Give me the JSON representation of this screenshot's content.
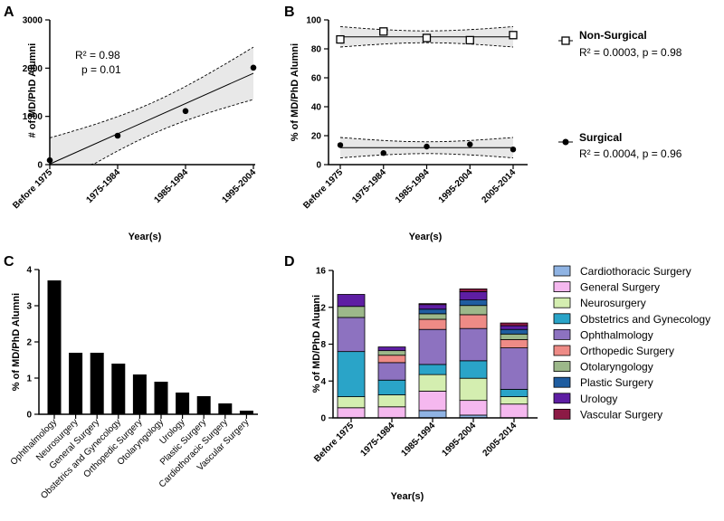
{
  "chart_data": [
    {
      "panel": "A",
      "type": "scatter",
      "ylabel": "# of MD/PhD Alumni",
      "xlabel": "Year(s)",
      "categories": [
        "Before 1975",
        "1975-1984",
        "1985-1994",
        "1995-2004"
      ],
      "values": [
        90,
        600,
        1110,
        2010
      ],
      "ylim": [
        0,
        3000
      ],
      "yticks": [
        "0",
        "1000",
        "2000",
        "3000"
      ],
      "stats": [
        "R² = 0.98",
        "p = 0.01"
      ]
    },
    {
      "panel": "B",
      "type": "scatter",
      "ylabel": "% of MD/PhD Alumni",
      "xlabel": "Year(s)",
      "categories": [
        "Before 1975",
        "1975-1984",
        "1985-1994",
        "1995-2004",
        "2005-2014"
      ],
      "ylim": [
        0,
        100
      ],
      "yticks": [
        "0",
        "20",
        "40",
        "60",
        "80",
        "100"
      ],
      "series": [
        {
          "name": "Non-Surgical",
          "stats": "R² = 0.0003, p = 0.98",
          "values": [
            86.5,
            92,
            87.5,
            86,
            89.5
          ]
        },
        {
          "name": "Surgical",
          "stats": "R² = 0.0004, p = 0.96",
          "values": [
            13.5,
            8,
            12.5,
            14,
            10.5
          ]
        }
      ]
    },
    {
      "panel": "C",
      "type": "bar",
      "ylabel": "% of MD/PhD Alumni",
      "categories": [
        "Ophthalmology",
        "Neurosurgery",
        "General Surgery",
        "Obstetrics and Gynecology",
        "Orthopedic Surgery",
        "Otolaryngology",
        "Urology",
        "Plastic Surgery",
        "Cardiothoracic Surgery",
        "Vascular Surgery"
      ],
      "values": [
        3.7,
        1.7,
        1.7,
        1.4,
        1.1,
        0.9,
        0.6,
        0.5,
        0.3,
        0.1
      ],
      "ylim": [
        0,
        4
      ],
      "yticks": [
        "0",
        "1",
        "2",
        "3",
        "4"
      ]
    },
    {
      "panel": "D",
      "type": "bar",
      "stacked": true,
      "ylabel": "% of MD/PhD Alumni",
      "xlabel": "Year(s)",
      "categories": [
        "Before 1975",
        "1975-1984",
        "1985-1994",
        "1995-2004",
        "2005-2014"
      ],
      "ylim": [
        0,
        16
      ],
      "yticks": [
        "0",
        "4",
        "8",
        "12",
        "16"
      ],
      "legend_position": "right",
      "series": [
        {
          "name": "Cardiothoracic Surgery",
          "color": "#8fb3e3",
          "values": [
            0,
            0,
            0.8,
            0.3,
            0
          ]
        },
        {
          "name": "General Surgery",
          "color": "#f5b8ef",
          "values": [
            1.1,
            1.2,
            2.1,
            1.6,
            1.5
          ]
        },
        {
          "name": "Neurosurgery",
          "color": "#d4eeb0",
          "values": [
            1.2,
            1.3,
            1.8,
            2.4,
            0.8
          ]
        },
        {
          "name": "Obstetrics and Gynecology",
          "color": "#2aa4c8",
          "values": [
            4.9,
            1.6,
            1.1,
            1.9,
            0.8
          ]
        },
        {
          "name": "Ophthalmology",
          "color": "#8d72c0",
          "values": [
            3.7,
            1.9,
            3.8,
            3.5,
            4.5
          ]
        },
        {
          "name": "Orthopedic Surgery",
          "color": "#ee8b86",
          "values": [
            0,
            0.8,
            1.1,
            1.5,
            0.9
          ]
        },
        {
          "name": "Otolaryngology",
          "color": "#9cb88a",
          "values": [
            1.2,
            0.5,
            0.6,
            1.0,
            0.6
          ]
        },
        {
          "name": "Plastic Surgery",
          "color": "#1f5da0",
          "values": [
            0,
            0,
            0.5,
            0.6,
            0.5
          ]
        },
        {
          "name": "Urology",
          "color": "#5e1ea3",
          "values": [
            1.3,
            0.4,
            0.5,
            0.9,
            0.4
          ]
        },
        {
          "name": "Vascular Surgery",
          "color": "#8c1a45",
          "values": [
            0,
            0,
            0.1,
            0.3,
            0.3
          ]
        }
      ]
    }
  ]
}
